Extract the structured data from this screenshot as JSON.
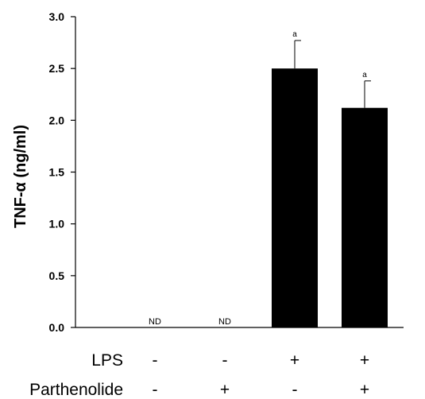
{
  "chart_data": {
    "type": "bar",
    "title": "",
    "xlabel": "",
    "ylabel": "TNF-α (ng/ml)",
    "ylim": [
      0,
      3.0
    ],
    "yticks": [
      "0.0",
      "0.5",
      "1.0",
      "1.5",
      "2.0",
      "2.5",
      "3.0"
    ],
    "bar_color": "#000000",
    "grid": false,
    "bars": [
      {
        "value": 0,
        "error": 0,
        "label": "ND",
        "significance": ""
      },
      {
        "value": 0,
        "error": 0,
        "label": "ND",
        "significance": ""
      },
      {
        "value": 2.5,
        "error": 0.27,
        "label": "",
        "significance": "a"
      },
      {
        "value": 2.12,
        "error": 0.26,
        "label": "",
        "significance": "a"
      }
    ],
    "conditions": [
      {
        "name": "LPS",
        "values": [
          "-",
          "-",
          "+",
          "+"
        ]
      },
      {
        "name": "Parthenolide",
        "values": [
          "-",
          "+",
          "-",
          "+"
        ]
      }
    ]
  }
}
